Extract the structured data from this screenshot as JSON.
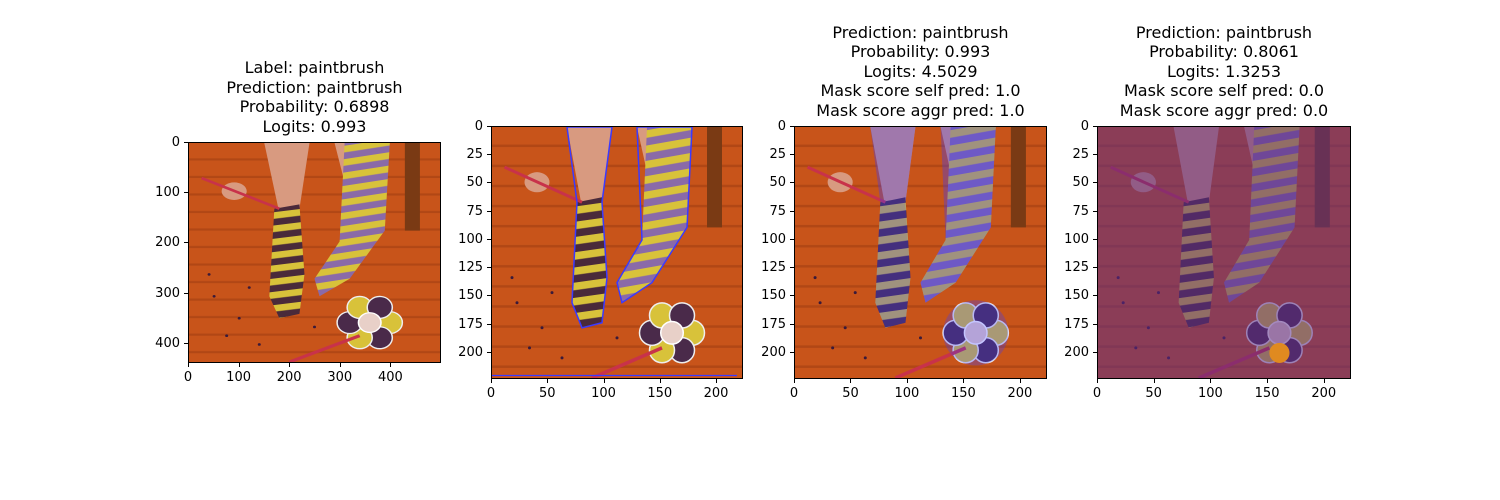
{
  "panels": [
    {
      "id": "panel-1",
      "title_lines": [
        "Label: paintbrush",
        "Prediction: paintbrush",
        "Probability: 0.6898",
        "Logits: 0.993"
      ],
      "x_ticks": [
        "0",
        "100",
        "200",
        "300",
        "400"
      ],
      "y_ticks": [
        "0",
        "100",
        "200",
        "300",
        "400"
      ],
      "x_range": [
        0,
        500
      ],
      "y_range": [
        0,
        440
      ],
      "overlay": "none"
    },
    {
      "id": "panel-2",
      "title_lines": [],
      "x_ticks": [
        "0",
        "50",
        "100",
        "150",
        "200"
      ],
      "y_ticks": [
        "0",
        "25",
        "50",
        "75",
        "100",
        "125",
        "150",
        "175",
        "200"
      ],
      "x_range": [
        0,
        224
      ],
      "y_range": [
        0,
        224
      ],
      "overlay": "blue-contour"
    },
    {
      "id": "panel-3",
      "title_lines": [
        "Prediction: paintbrush",
        "Probability: 0.993",
        "Logits: 4.5029",
        "Mask score self pred: 1.0",
        "Mask score aggr pred: 1.0"
      ],
      "x_ticks": [
        "0",
        "50",
        "100",
        "150",
        "200"
      ],
      "y_ticks": [
        "0",
        "25",
        "50",
        "75",
        "100",
        "125",
        "150",
        "175",
        "200"
      ],
      "x_range": [
        0,
        224
      ],
      "y_range": [
        0,
        224
      ],
      "overlay": "blue-mask"
    },
    {
      "id": "panel-4",
      "title_lines": [
        "Prediction: paintbrush",
        "Probability: 0.8061",
        "Logits: 1.3253",
        "Mask score self pred: 0.0",
        "Mask score aggr pred: 0.0"
      ],
      "x_ticks": [
        "0",
        "50",
        "100",
        "150",
        "200"
      ],
      "y_ticks": [
        "0",
        "25",
        "50",
        "75",
        "100",
        "125",
        "150",
        "175",
        "200"
      ],
      "x_range": [
        0,
        224
      ],
      "y_range": [
        0,
        224
      ],
      "overlay": "purple-mask"
    }
  ],
  "colors": {
    "floor": "#c8541a",
    "floor_dark": "#9a3a10",
    "sock_yellow": "#d8c23a",
    "sock_stripe": "#4a2a3a",
    "sock_purple": "#8a6aa8",
    "leg": "#d89a80",
    "overlay_blue": "#3a3aff",
    "overlay_purple": "#5a2a8a"
  }
}
